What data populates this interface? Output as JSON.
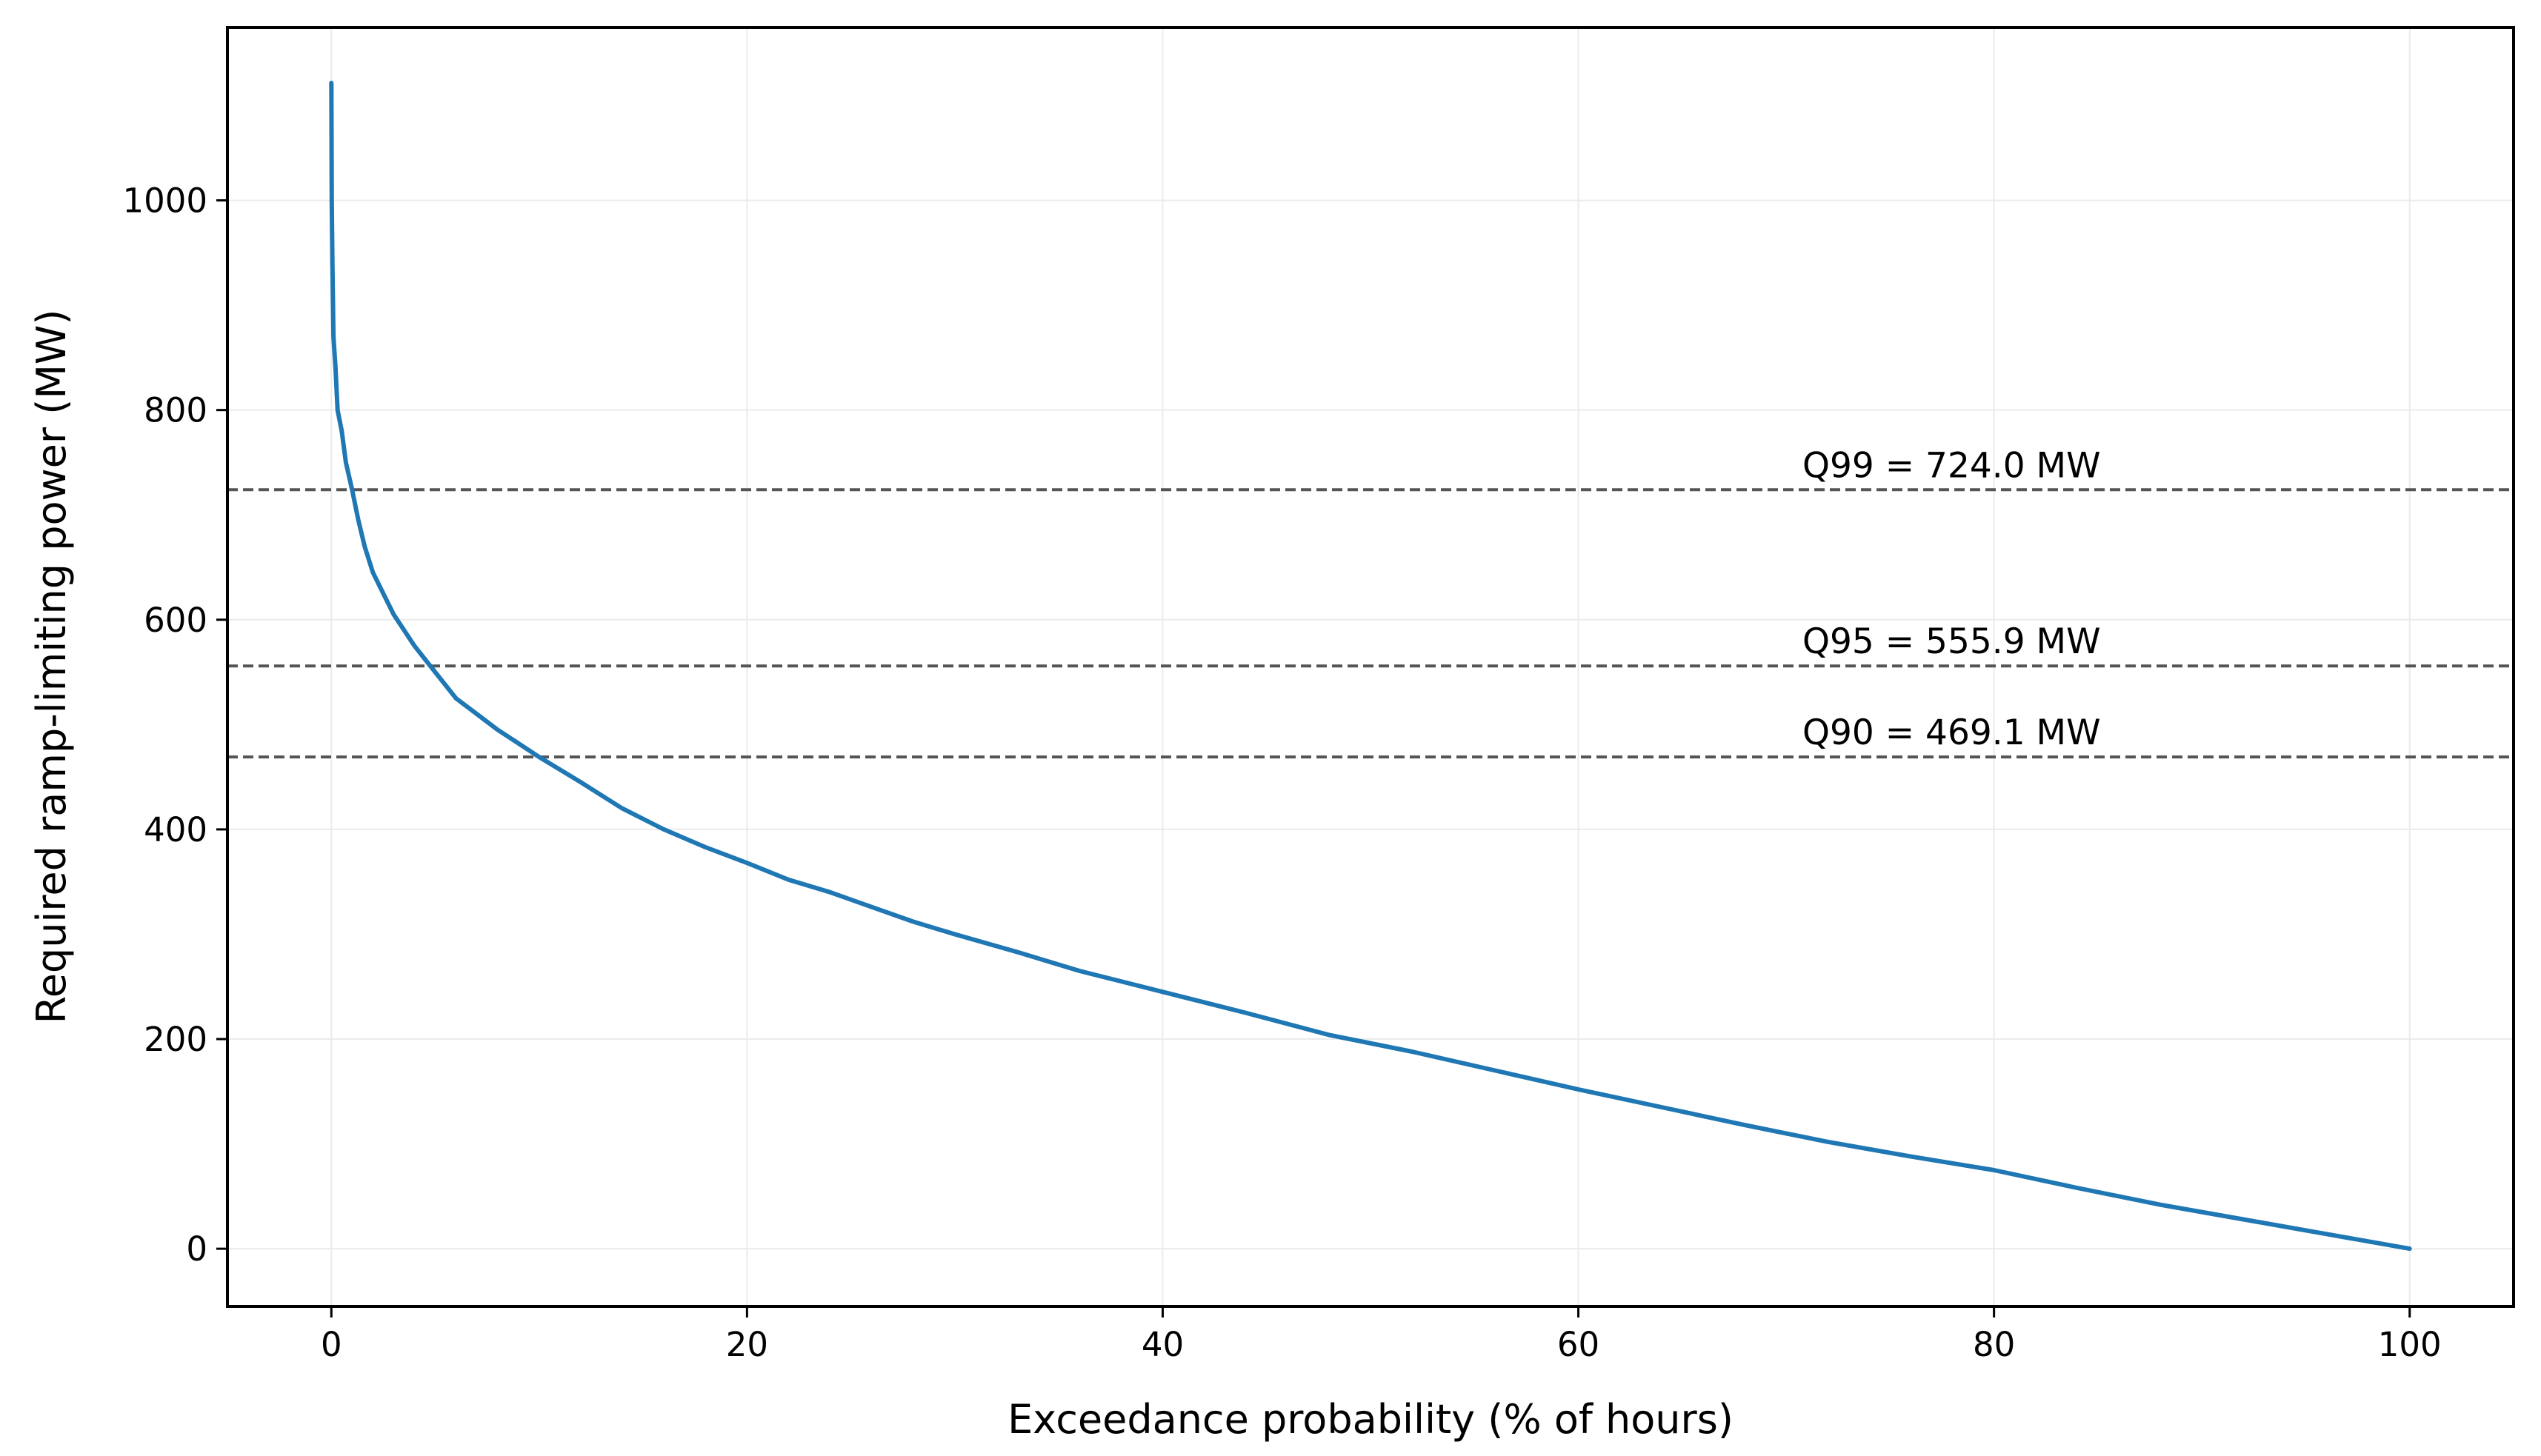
{
  "chart_data": {
    "type": "line",
    "title": "",
    "xlabel": "Exceedance probability (% of hours)",
    "ylabel": "Required ramp-limiting power (MW)",
    "xlim": [
      -5,
      105
    ],
    "ylim": [
      -55,
      1165
    ],
    "xticks": [
      0,
      20,
      40,
      60,
      80,
      100
    ],
    "yticks": [
      0,
      200,
      400,
      600,
      800,
      1000
    ],
    "grid": true,
    "legend": "none",
    "series": [
      {
        "color": "#1f77b4",
        "x": [
          0,
          0.02,
          0.05,
          0.1,
          0.2,
          0.3,
          0.5,
          0.7,
          1,
          1.3,
          1.6,
          2,
          2.5,
          3,
          3.5,
          4,
          5,
          6,
          7,
          8,
          9,
          10,
          12,
          14,
          16,
          18,
          20,
          22,
          24,
          26,
          28,
          30,
          33,
          36,
          40,
          44,
          48,
          52,
          56,
          60,
          64,
          68,
          72,
          76,
          80,
          84,
          88,
          92,
          96,
          100
        ],
        "y": [
          1112,
          1000,
          940,
          870,
          840,
          800,
          780,
          750,
          724,
          695,
          670,
          645,
          625,
          605,
          590,
          575,
          550,
          525,
          510,
          495,
          482,
          469,
          445,
          420,
          400,
          383,
          368,
          352,
          340,
          326,
          312,
          300,
          283,
          265,
          245,
          225,
          204,
          188,
          170,
          152,
          135,
          118,
          102,
          88,
          75,
          58,
          42,
          28,
          14,
          0
        ]
      }
    ],
    "reference_lines": [
      {
        "label": "Q99 = 724.0 MW",
        "y": 724.0
      },
      {
        "label": "Q95 = 555.9 MW",
        "y": 555.9
      },
      {
        "label": "Q90 = 469.1 MW",
        "y": 469.1
      }
    ]
  }
}
